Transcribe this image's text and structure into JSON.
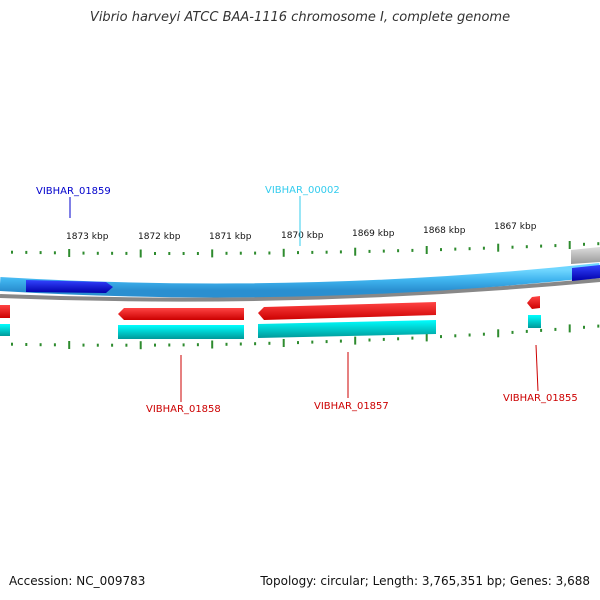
{
  "title": "Vibrio harveyi ATCC BAA-1116 chromosome I, complete genome",
  "footer": {
    "accession": "Accession: NC_009783",
    "summary": "Topology: circular; Length: 3,765,351 bp; Genes: 3,688"
  },
  "ruler": {
    "labels": [
      "1873 kbp",
      "1872 kbp",
      "1871 kbp",
      "1870 kbp",
      "1869 kbp",
      "1868 kbp",
      "1867 kbp"
    ]
  },
  "genes": {
    "top": [
      {
        "name": "VIBHAR_01859",
        "color": "#0000cc"
      },
      {
        "name": "VIBHAR_00002",
        "color": "#33ccee"
      }
    ],
    "bottom": [
      {
        "name": "VIBHAR_01858",
        "color": "#cc0000"
      },
      {
        "name": "VIBHAR_01857",
        "color": "#cc0000"
      },
      {
        "name": "VIBHAR_01855",
        "color": "#cc0000"
      }
    ]
  },
  "colors": {
    "backbone": "#4fc3f7",
    "forward_gene": "#1a1aff",
    "reverse_gene": "#ee0000",
    "cds_track": "#00cccc",
    "tick": "#2e8b2e"
  }
}
